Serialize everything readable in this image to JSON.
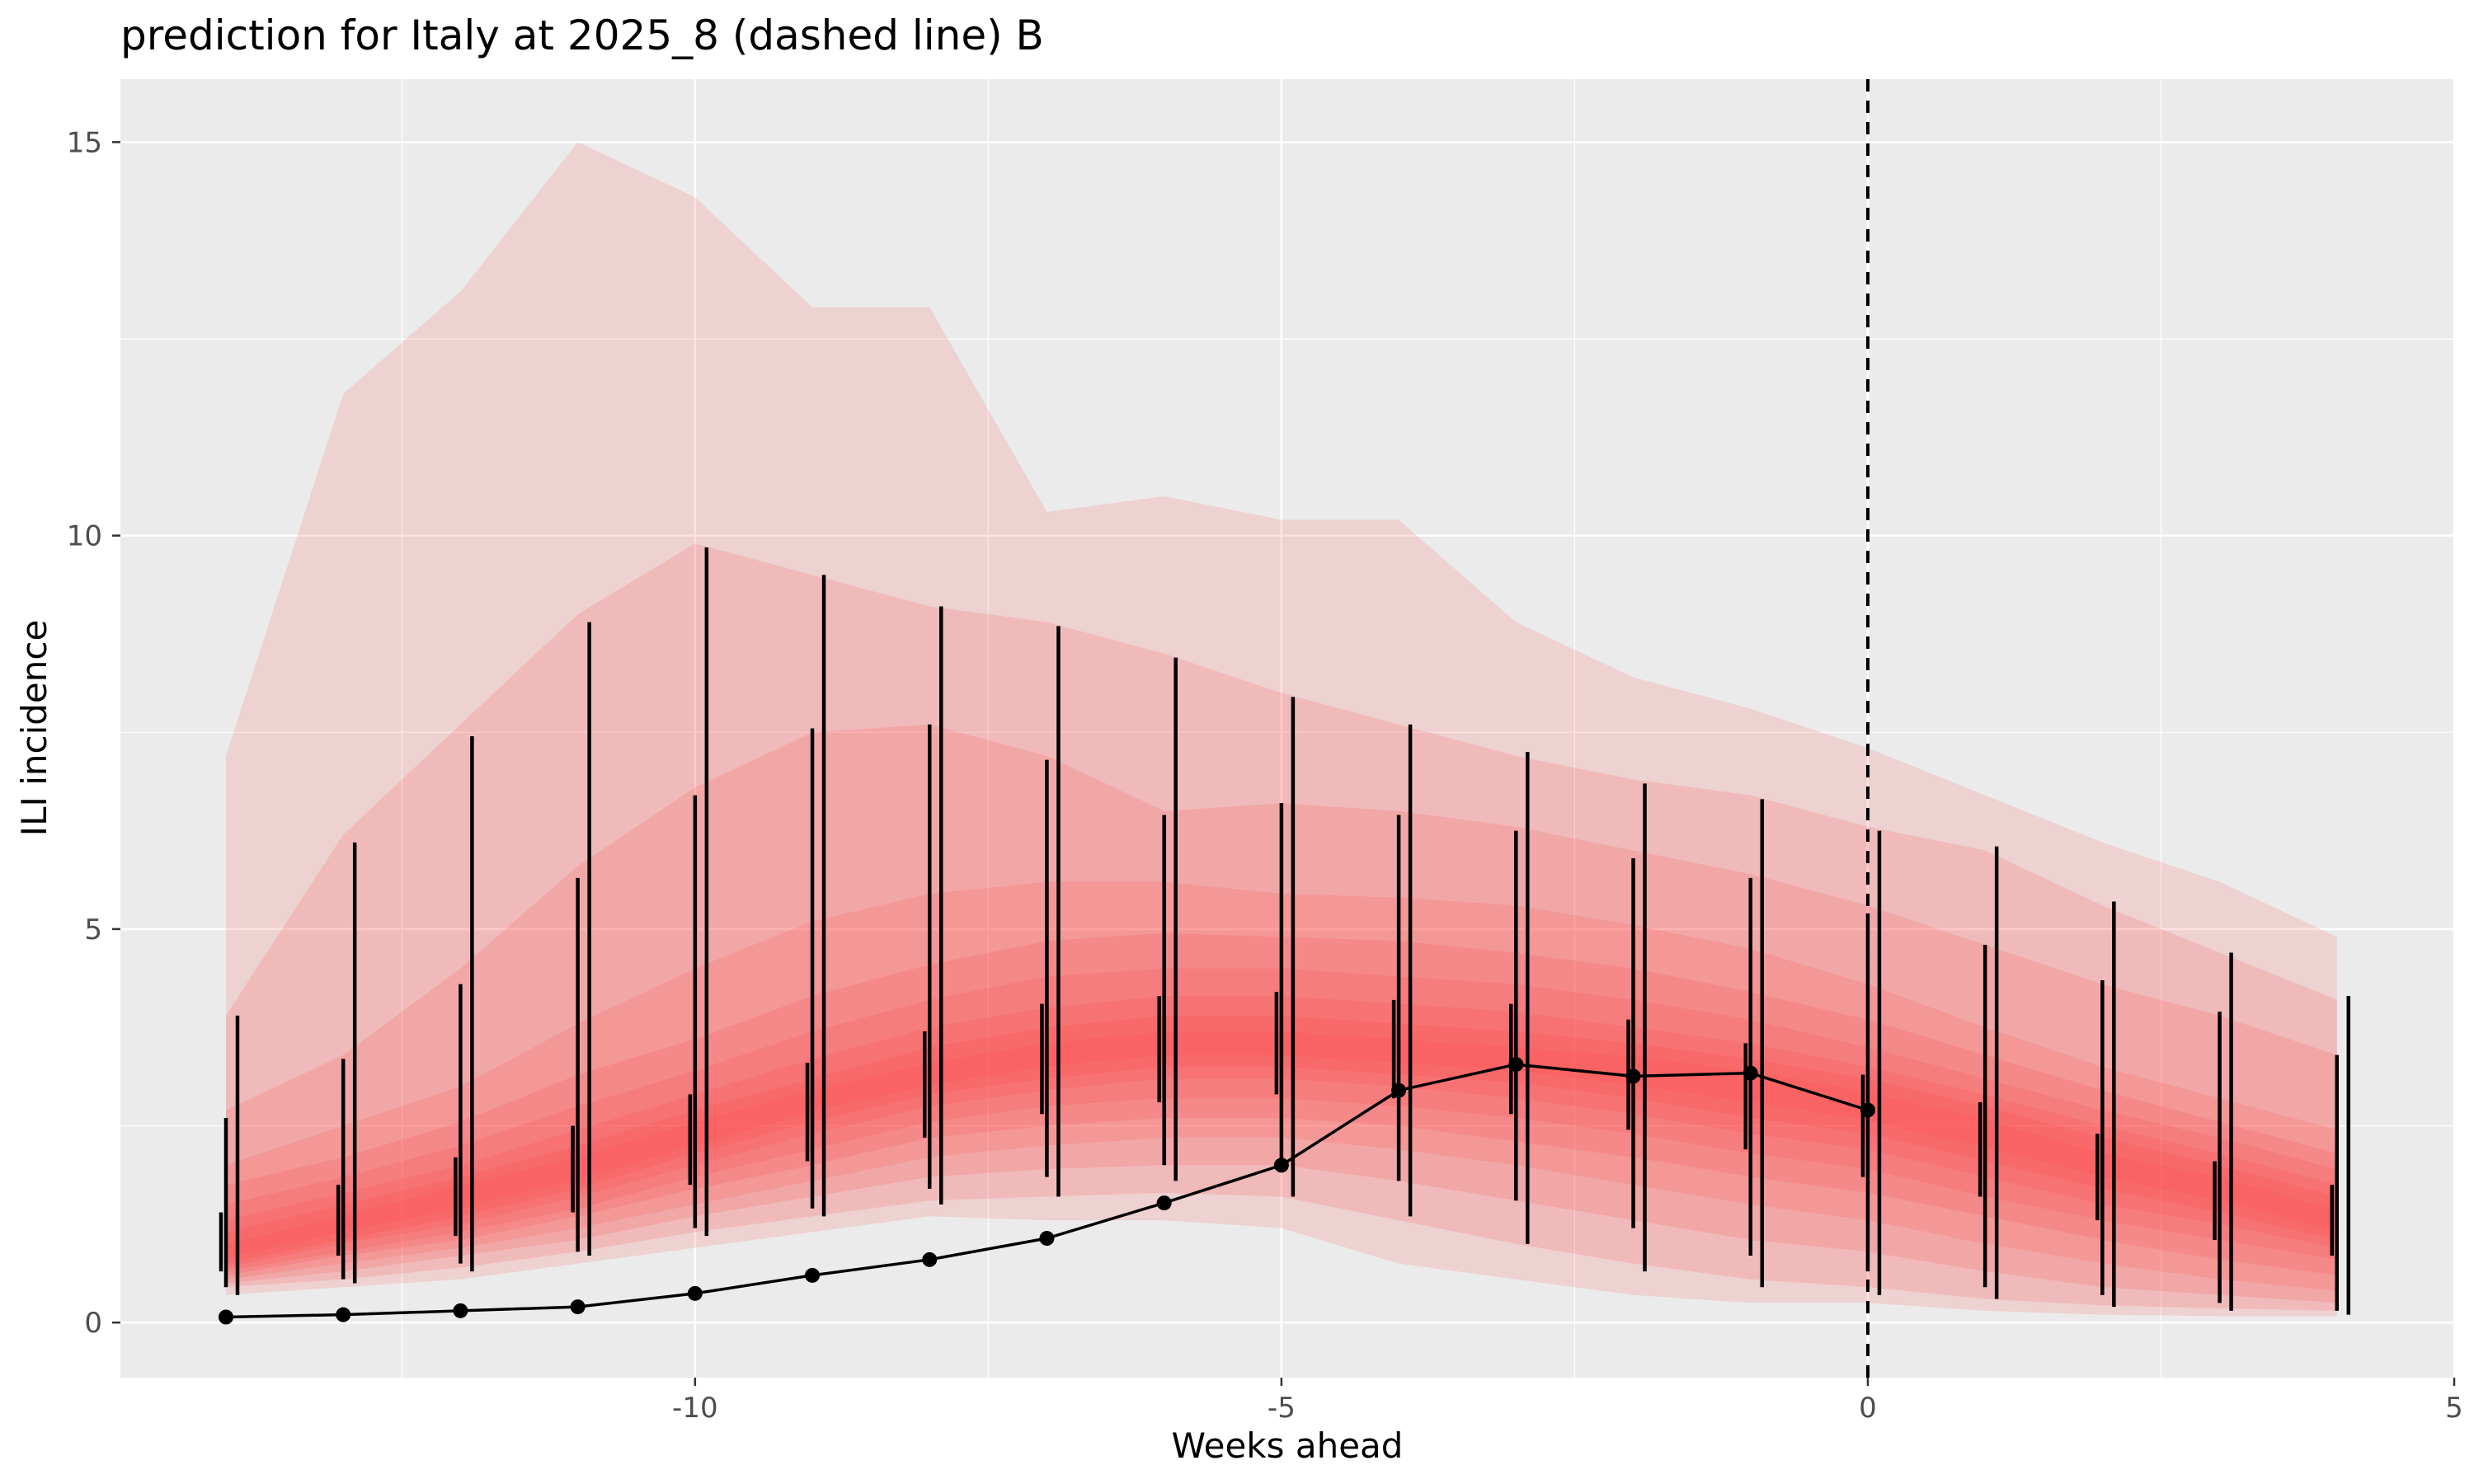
{
  "chart_data": {
    "type": "line",
    "title": "prediction for Italy at 2025_8 (dashed line) B",
    "xlabel": "Weeks ahead",
    "ylabel": "ILI incidence",
    "xlim": [
      -14.9,
      5
    ],
    "ylim": [
      -0.7,
      15.8
    ],
    "x_ticks": [
      -10,
      -5,
      0,
      5
    ],
    "y_ticks": [
      0,
      5,
      10,
      15
    ],
    "x_tick_labels": [
      "-10",
      "-5",
      "0",
      "5"
    ],
    "y_tick_labels": [
      "0",
      "5",
      "10",
      "15"
    ],
    "grid": true,
    "vline_x": 0,
    "x": [
      -14,
      -13,
      -12,
      -11,
      -10,
      -9,
      -8,
      -7,
      -6,
      -5,
      -4,
      -3,
      -2,
      -1,
      0,
      1,
      2,
      3,
      4
    ],
    "median": [
      0.9,
      1.25,
      1.6,
      1.95,
      2.4,
      2.8,
      3.15,
      3.4,
      3.55,
      3.55,
      3.45,
      3.35,
      3.2,
      3.0,
      2.75,
      2.4,
      2.0,
      1.7,
      1.3
    ],
    "bands": [
      {
        "level": 0.9,
        "lower": [
          0.35,
          0.45,
          0.55,
          0.75,
          0.95,
          1.15,
          1.35,
          1.3,
          1.3,
          1.2,
          0.75,
          0.55,
          0.35,
          0.25,
          0.25,
          0.15,
          0.1,
          0.08,
          0.08
        ],
        "upper": [
          7.2,
          11.8,
          13.1,
          15.0,
          14.3,
          12.9,
          12.9,
          10.3,
          10.5,
          10.2,
          10.2,
          8.9,
          8.2,
          7.8,
          7.3,
          6.7,
          6.1,
          5.6,
          4.9
        ]
      },
      {
        "level": 0.8,
        "lower": [
          0.45,
          0.55,
          0.7,
          0.9,
          1.15,
          1.35,
          1.55,
          1.6,
          1.65,
          1.6,
          1.3,
          1.0,
          0.75,
          0.55,
          0.45,
          0.3,
          0.22,
          0.18,
          0.15
        ],
        "upper": [
          3.9,
          6.2,
          7.6,
          9.0,
          9.9,
          9.5,
          9.1,
          8.9,
          8.5,
          8.0,
          7.6,
          7.2,
          6.9,
          6.7,
          6.3,
          6.0,
          5.3,
          4.7,
          4.1
        ]
      },
      {
        "level": 0.7,
        "lower": [
          0.5,
          0.65,
          0.85,
          1.05,
          1.35,
          1.6,
          1.85,
          1.95,
          2.0,
          2.0,
          1.8,
          1.55,
          1.3,
          1.05,
          0.9,
          0.65,
          0.45,
          0.35,
          0.25
        ],
        "upper": [
          2.7,
          3.4,
          4.5,
          5.8,
          6.8,
          7.5,
          7.6,
          7.2,
          6.5,
          6.6,
          6.5,
          6.3,
          6.0,
          5.7,
          5.3,
          4.8,
          4.3,
          3.9,
          3.4
        ]
      },
      {
        "level": 0.6,
        "lower": [
          0.55,
          0.75,
          0.95,
          1.2,
          1.5,
          1.8,
          2.1,
          2.25,
          2.35,
          2.35,
          2.2,
          2.0,
          1.75,
          1.5,
          1.3,
          1.0,
          0.75,
          0.55,
          0.4
        ],
        "upper": [
          2.0,
          2.5,
          3.0,
          3.8,
          4.5,
          5.1,
          5.45,
          5.6,
          5.6,
          5.45,
          5.4,
          5.3,
          5.05,
          4.75,
          4.3,
          3.75,
          3.25,
          2.85,
          2.45
        ]
      },
      {
        "level": 0.5,
        "lower": [
          0.6,
          0.85,
          1.05,
          1.35,
          1.7,
          2.0,
          2.35,
          2.5,
          2.6,
          2.6,
          2.5,
          2.3,
          2.1,
          1.85,
          1.65,
          1.35,
          1.05,
          0.8,
          0.6
        ],
        "upper": [
          1.75,
          2.1,
          2.55,
          3.15,
          3.6,
          4.15,
          4.55,
          4.85,
          4.95,
          4.9,
          4.85,
          4.7,
          4.5,
          4.2,
          3.85,
          3.4,
          2.95,
          2.55,
          2.15
        ]
      },
      {
        "level": 0.4,
        "lower": [
          0.65,
          0.9,
          1.15,
          1.45,
          1.85,
          2.2,
          2.55,
          2.75,
          2.85,
          2.85,
          2.75,
          2.6,
          2.4,
          2.15,
          1.95,
          1.6,
          1.3,
          1.05,
          0.8
        ],
        "upper": [
          1.5,
          1.85,
          2.25,
          2.75,
          3.2,
          3.7,
          4.1,
          4.4,
          4.5,
          4.5,
          4.4,
          4.3,
          4.1,
          3.85,
          3.5,
          3.1,
          2.7,
          2.35,
          1.95
        ]
      },
      {
        "level": 0.3,
        "lower": [
          0.7,
          1.0,
          1.25,
          1.6,
          2.0,
          2.4,
          2.75,
          2.95,
          3.1,
          3.1,
          3.0,
          2.85,
          2.65,
          2.4,
          2.2,
          1.85,
          1.5,
          1.25,
          0.95
        ],
        "upper": [
          1.3,
          1.65,
          2.0,
          2.45,
          2.9,
          3.35,
          3.75,
          4.0,
          4.15,
          4.15,
          4.05,
          3.95,
          3.75,
          3.55,
          3.25,
          2.9,
          2.5,
          2.15,
          1.75
        ]
      },
      {
        "level": 0.2,
        "lower": [
          0.75,
          1.05,
          1.35,
          1.7,
          2.15,
          2.55,
          2.9,
          3.1,
          3.25,
          3.25,
          3.15,
          3.05,
          2.85,
          2.6,
          2.4,
          2.05,
          1.7,
          1.4,
          1.05
        ],
        "upper": [
          1.15,
          1.5,
          1.85,
          2.25,
          2.7,
          3.1,
          3.5,
          3.75,
          3.9,
          3.9,
          3.8,
          3.7,
          3.55,
          3.35,
          3.1,
          2.75,
          2.35,
          2.0,
          1.6
        ]
      },
      {
        "level": 0.1,
        "lower": [
          0.82,
          1.15,
          1.45,
          1.82,
          2.25,
          2.68,
          3.02,
          3.25,
          3.4,
          3.4,
          3.3,
          3.2,
          3.02,
          2.8,
          2.57,
          2.22,
          1.85,
          1.55,
          1.17
        ],
        "upper": [
          1.0,
          1.35,
          1.75,
          2.1,
          2.55,
          2.95,
          3.3,
          3.55,
          3.7,
          3.7,
          3.6,
          3.5,
          3.38,
          3.2,
          2.93,
          2.58,
          2.15,
          1.85,
          1.43
        ]
      }
    ],
    "bars_a": [
      {
        "x": -14,
        "lo": 0.65,
        "hi": 1.4
      },
      {
        "x": -13,
        "lo": 0.85,
        "hi": 1.75
      },
      {
        "x": -12,
        "lo": 1.1,
        "hi": 2.1
      },
      {
        "x": -11,
        "lo": 1.4,
        "hi": 2.5
      },
      {
        "x": -10,
        "lo": 1.75,
        "hi": 2.9
      },
      {
        "x": -9,
        "lo": 2.05,
        "hi": 3.3
      },
      {
        "x": -8,
        "lo": 2.35,
        "hi": 3.7
      },
      {
        "x": -7,
        "lo": 2.65,
        "hi": 4.05
      },
      {
        "x": -6,
        "lo": 2.8,
        "hi": 4.15
      },
      {
        "x": -5,
        "lo": 2.9,
        "hi": 4.2
      },
      {
        "x": -4,
        "lo": 2.85,
        "hi": 4.1
      },
      {
        "x": -3,
        "lo": 2.65,
        "hi": 4.05
      },
      {
        "x": -2,
        "lo": 2.45,
        "hi": 3.85
      },
      {
        "x": -1,
        "lo": 2.2,
        "hi": 3.55
      },
      {
        "x": 0,
        "lo": 1.85,
        "hi": 3.15
      },
      {
        "x": 1,
        "lo": 1.6,
        "hi": 2.8
      },
      {
        "x": 2,
        "lo": 1.3,
        "hi": 2.4
      },
      {
        "x": 3,
        "lo": 1.05,
        "hi": 2.05
      },
      {
        "x": 4,
        "lo": 0.85,
        "hi": 1.75
      }
    ],
    "bars_b": [
      {
        "x": -14,
        "lo": 0.45,
        "hi": 2.6
      },
      {
        "x": -13,
        "lo": 0.55,
        "hi": 3.35
      },
      {
        "x": -12,
        "lo": 0.75,
        "hi": 4.3
      },
      {
        "x": -11,
        "lo": 0.9,
        "hi": 5.65
      },
      {
        "x": -10,
        "lo": 1.2,
        "hi": 6.7
      },
      {
        "x": -9,
        "lo": 1.45,
        "hi": 7.55
      },
      {
        "x": -8,
        "lo": 1.7,
        "hi": 7.6
      },
      {
        "x": -7,
        "lo": 1.85,
        "hi": 7.15
      },
      {
        "x": -6,
        "lo": 2.0,
        "hi": 6.45
      },
      {
        "x": -5,
        "lo": 1.95,
        "hi": 6.6
      },
      {
        "x": -4,
        "lo": 1.8,
        "hi": 6.45
      },
      {
        "x": -3,
        "lo": 1.55,
        "hi": 6.25
      },
      {
        "x": -2,
        "lo": 1.2,
        "hi": 5.9
      },
      {
        "x": -1,
        "lo": 0.85,
        "hi": 5.65
      },
      {
        "x": 0,
        "lo": 0.65,
        "hi": 5.2
      },
      {
        "x": 1,
        "lo": 0.45,
        "hi": 4.8
      },
      {
        "x": 2,
        "lo": 0.35,
        "hi": 4.35
      },
      {
        "x": 3,
        "lo": 0.25,
        "hi": 3.95
      },
      {
        "x": 4,
        "lo": 0.15,
        "hi": 3.4
      }
    ],
    "bars_c": [
      {
        "x": -14,
        "lo": 0.35,
        "hi": 3.9
      },
      {
        "x": -13,
        "lo": 0.5,
        "hi": 6.1
      },
      {
        "x": -12,
        "lo": 0.65,
        "hi": 7.45
      },
      {
        "x": -11,
        "lo": 0.85,
        "hi": 8.9
      },
      {
        "x": -10,
        "lo": 1.1,
        "hi": 9.85
      },
      {
        "x": -9,
        "lo": 1.35,
        "hi": 9.5
      },
      {
        "x": -8,
        "lo": 1.5,
        "hi": 9.1
      },
      {
        "x": -7,
        "lo": 1.6,
        "hi": 8.85
      },
      {
        "x": -6,
        "lo": 1.8,
        "hi": 8.45
      },
      {
        "x": -5,
        "lo": 1.6,
        "hi": 7.95
      },
      {
        "x": -4,
        "lo": 1.35,
        "hi": 7.6
      },
      {
        "x": -3,
        "lo": 1.0,
        "hi": 7.25
      },
      {
        "x": -2,
        "lo": 0.65,
        "hi": 6.85
      },
      {
        "x": -1,
        "lo": 0.45,
        "hi": 6.65
      },
      {
        "x": 0,
        "lo": 0.35,
        "hi": 6.25
      },
      {
        "x": 1,
        "lo": 0.3,
        "hi": 6.05
      },
      {
        "x": 2,
        "lo": 0.2,
        "hi": 5.35
      },
      {
        "x": 3,
        "lo": 0.15,
        "hi": 4.7
      },
      {
        "x": 4,
        "lo": 0.1,
        "hi": 4.15
      }
    ],
    "observed": {
      "x": [
        -14,
        -13,
        -12,
        -11,
        -10,
        -9,
        -8,
        -7,
        -6,
        -5,
        -4,
        -3,
        -2,
        -1,
        0
      ],
      "y": [
        0.07,
        0.1,
        0.15,
        0.2,
        0.37,
        0.6,
        0.8,
        1.07,
        1.52,
        2.0,
        2.95,
        3.28,
        3.13,
        3.17,
        2.7
      ]
    },
    "colors": {
      "panel": "#ebebeb",
      "grid": "#ffffff",
      "band": "#ff3b3b",
      "line": "#000000"
    }
  }
}
